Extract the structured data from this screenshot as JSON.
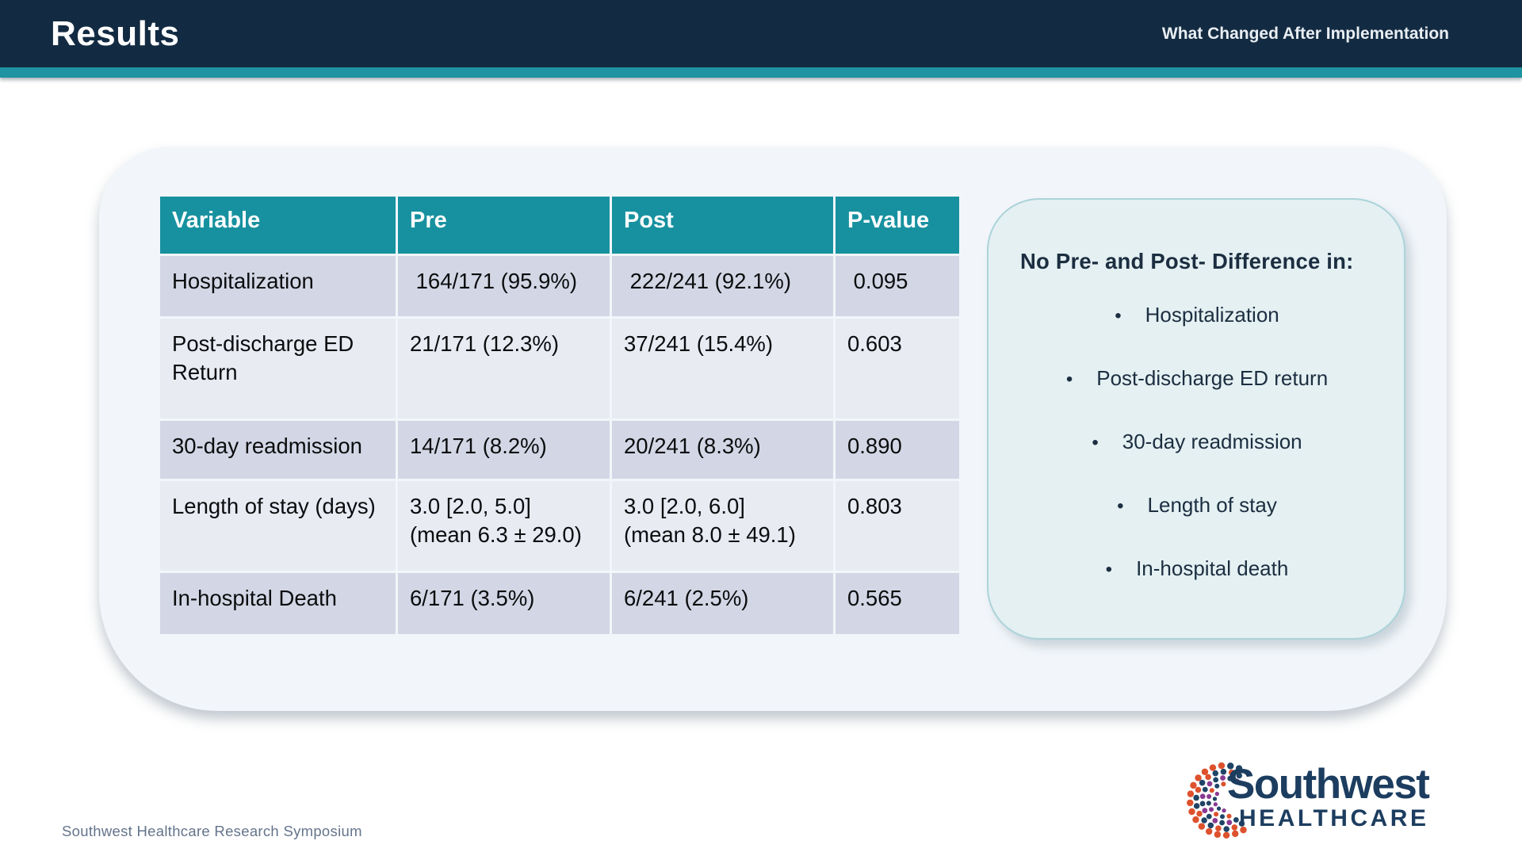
{
  "header": {
    "title": "Results",
    "subtitle": "What Changed After Implementation"
  },
  "table": {
    "columns": [
      "Variable",
      "Pre",
      "Post",
      "P-value"
    ],
    "rows": [
      {
        "variable": "Hospitalization",
        "pre": " 164/171 (95.9%)",
        "post": " 222/241 (92.1%)",
        "p": " 0.095"
      },
      {
        "variable": "Post-discharge ED Return",
        "pre": "21/171 (12.3%)",
        "post": "37/241 (15.4%)",
        "p": "0.603"
      },
      {
        "variable": "30-day readmission",
        "pre": "14/171 (8.2%)",
        "post": "20/241 (8.3%)",
        "p": "0.890"
      },
      {
        "variable": "Length of stay (days)",
        "pre": "3.0 [2.0, 5.0]\n(mean 6.3 ± 29.0)",
        "post": "3.0 [2.0, 6.0]\n(mean 8.0 ± 49.1)",
        "p": "0.803"
      },
      {
        "variable": "In-hospital Death",
        "pre": "6/171 (3.5%)",
        "post": "6/241 (2.5%)",
        "p": "0.565"
      }
    ]
  },
  "callout": {
    "title": "No Pre- and Post- Difference in:",
    "items": [
      "Hospitalization",
      "Post-discharge ED return",
      "30-day readmission",
      "Length of stay",
      "In-hospital death"
    ]
  },
  "footer": {
    "credit": "Southwest Healthcare Research Symposium"
  },
  "logo": {
    "line1": "Southwest",
    "line2": "HEALTHCARE"
  },
  "colors": {
    "header_navy": "#132B42",
    "accent_teal": "#1F93A1",
    "table_header_teal": "#17919F",
    "row_odd": "#D3D7E5",
    "row_even": "#E9EBF3",
    "panel_bg": "#F2F6FA",
    "callout_bg": "#E4F0F2",
    "callout_border": "#ACD3DA",
    "dark_text": "#1C2E40",
    "logo_navy": "#1F4466",
    "logo_orange": "#DD512C",
    "logo_purple": "#8A3A92",
    "logo_text_navy": "#1C3D5F"
  }
}
